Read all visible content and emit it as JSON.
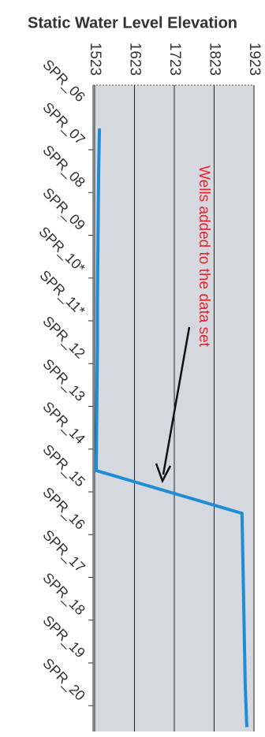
{
  "chart_data": {
    "type": "line",
    "title": "Static Water Level Elevation",
    "categories": [
      "SPR_06",
      "SPR_07",
      "SPR_08",
      "SPR_09",
      "SPR_10*",
      "SPR_11*",
      "SPR_12",
      "SPR_13",
      "SPR_14",
      "SPR_15",
      "SPR_16",
      "SPR_17",
      "SPR_18",
      "SPR_19",
      "SPR_20"
    ],
    "series": [
      {
        "color": "#1f8dd6",
        "values": [
          1535,
          1533,
          1532,
          1531,
          1530,
          1530,
          1529,
          1528,
          1527,
          1893,
          1895,
          1897,
          1899,
          1901,
          1905
        ]
      }
    ],
    "xlim": [
      1523,
      1923
    ],
    "xticks": [
      1523,
      1623,
      1723,
      1823,
      1923
    ],
    "grid": true,
    "annotation": "Wells added to the data set"
  }
}
